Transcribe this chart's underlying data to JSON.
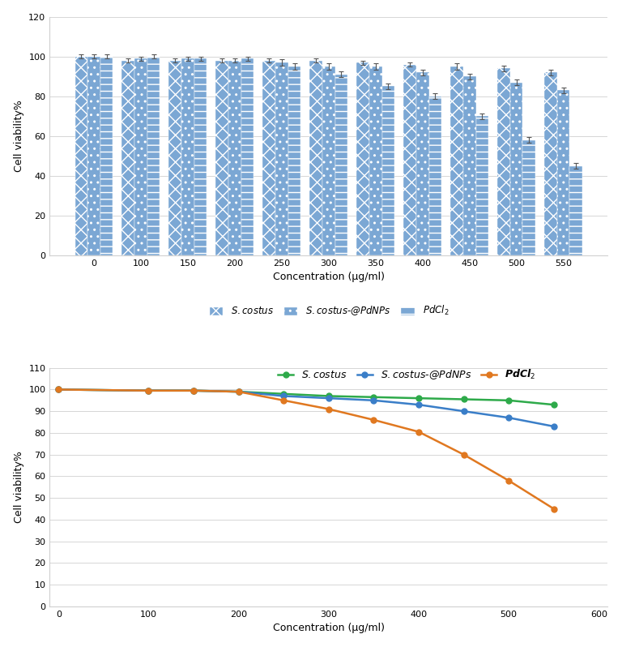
{
  "concentrations": [
    0,
    100,
    150,
    200,
    250,
    300,
    350,
    400,
    450,
    500,
    550
  ],
  "bar_scostus": [
    100,
    98,
    98,
    98,
    98,
    98,
    97,
    96,
    95,
    94,
    92
  ],
  "bar_pdnps": [
    100,
    99,
    99,
    98,
    97,
    95,
    95,
    92,
    90,
    87,
    83
  ],
  "bar_pdcl2": [
    100,
    100,
    99,
    99,
    95,
    91,
    85,
    80,
    70,
    58,
    45
  ],
  "err_scostus": [
    1.0,
    1.0,
    1.0,
    1.0,
    1.0,
    1.0,
    1.0,
    1.0,
    1.5,
    1.5,
    1.5
  ],
  "err_pdnps": [
    1.0,
    1.0,
    1.0,
    1.0,
    1.5,
    1.5,
    1.5,
    1.5,
    1.5,
    1.5,
    1.5
  ],
  "err_pdcl2": [
    1.0,
    1.0,
    1.0,
    1.0,
    1.5,
    1.5,
    1.5,
    1.5,
    1.5,
    1.5,
    1.5
  ],
  "line_x": [
    0,
    100,
    150,
    200,
    250,
    300,
    350,
    400,
    450,
    500,
    550
  ],
  "line_scostus": [
    100,
    99.5,
    99.5,
    99,
    98,
    97,
    96.5,
    96,
    95.5,
    95,
    93
  ],
  "line_pdnps": [
    100,
    99.5,
    99.5,
    99,
    97,
    96,
    95,
    93,
    90,
    87,
    83
  ],
  "line_pdcl2": [
    100,
    99.5,
    99.5,
    99,
    95,
    91,
    86,
    80.5,
    70,
    58,
    45
  ],
  "bar_color": "#7BA7D4",
  "bar_edge_color": "#7BA7D4",
  "line_color_scostus": "#2EAA4A",
  "line_color_pdnps": "#3A7EC8",
  "line_color_pdcl2": "#E07820",
  "bar_ylim": [
    0,
    120
  ],
  "line_ylim": [
    0,
    110
  ],
  "bar_yticks": [
    0,
    20,
    40,
    60,
    80,
    100,
    120
  ],
  "line_yticks": [
    0,
    10,
    20,
    30,
    40,
    50,
    60,
    70,
    80,
    90,
    100,
    110
  ],
  "xlabel": "Concentration (µg/ml)",
  "ylabel": "Cell viability%",
  "line_xticks": [
    0,
    100,
    200,
    300,
    400,
    500,
    600
  ],
  "background_color": "#ffffff",
  "grid_color": "#d0d0d0"
}
